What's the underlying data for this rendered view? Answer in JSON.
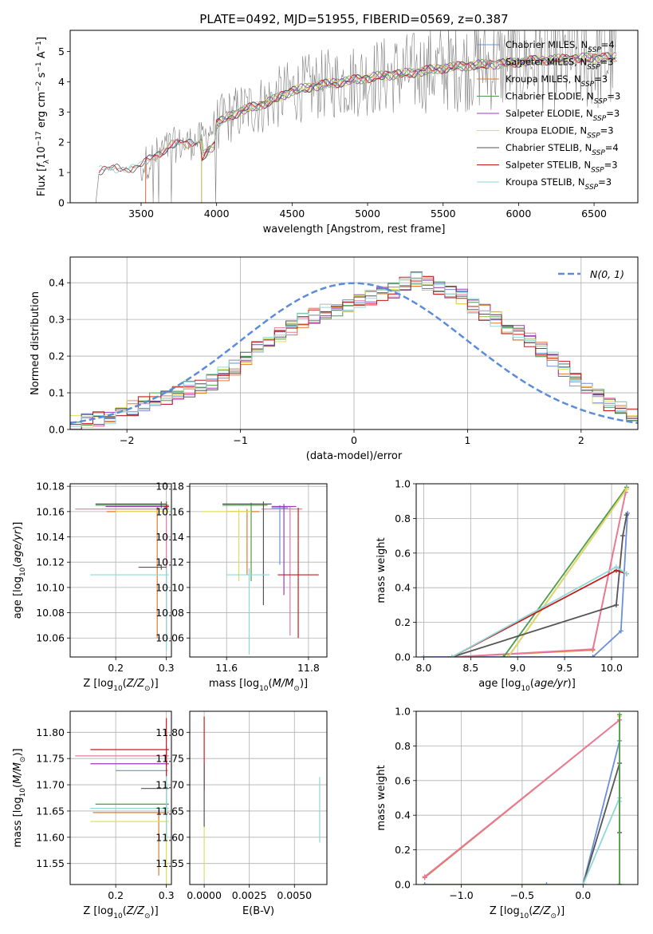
{
  "figure_title": "PLATE=0492, MJD=51955, FIBERID=0569, z=0.387",
  "colors": {
    "Chabrier MILES": "#6a8fd8",
    "Salpeter MILES": "#e8789e",
    "Kroupa MILES": "#e07b2e",
    "Chabrier ELODIE": "#4e9a4e",
    "Salpeter ELODIE": "#9a3ab8",
    "Kroupa ELODIE": "#dfe05a",
    "Chabrier STELIB": "#555555",
    "Salpeter STELIB": "#c41c1c",
    "Kroupa STELIB": "#8fd7d7",
    "data": "#808080",
    "gaussian": "#5b8bdc"
  },
  "chart_data": [
    {
      "id": "spectrum",
      "type": "line",
      "title": "PLATE=0492, MJD=51955, FIBERID=0569, z=0.387",
      "xlabel": "wavelength [Angstrom, rest frame]",
      "ylabel": "Flux [f_λ 10^-17 erg cm^-2 s^-1 A^-1]",
      "xlim": [
        3030,
        6790
      ],
      "ylim": [
        0,
        5.7
      ],
      "xticks": [
        3500,
        4000,
        4500,
        5000,
        5500,
        6000,
        6500
      ],
      "yticks": [
        0,
        1,
        2,
        3,
        4,
        5
      ],
      "legend_position": "top-right",
      "data_series": {
        "name": "data",
        "color": "#808080"
      },
      "continuum": {
        "x": [
          3200,
          3300,
          3400,
          3500,
          3600,
          3700,
          3800,
          3900,
          4000,
          4100,
          4200,
          4300,
          4400,
          4500,
          4700,
          4900,
          5100,
          5300,
          5500,
          5700,
          5900,
          6100,
          6300,
          6500,
          6650
        ],
        "y": [
          1.05,
          1.1,
          1.15,
          1.2,
          1.6,
          1.9,
          1.95,
          2.1,
          2.6,
          2.9,
          3.1,
          3.25,
          3.45,
          3.7,
          3.9,
          4.05,
          4.2,
          4.3,
          4.45,
          4.55,
          4.6,
          4.7,
          4.75,
          4.8,
          4.8
        ]
      },
      "series": [
        {
          "name": "Chabrier MILES",
          "label": "Chabrier MILES, N",
          "sub": "SSP",
          "nssp": "=4",
          "color": "#6a8fd8",
          "x": [
            3530,
            4000,
            6650
          ]
        },
        {
          "name": "Salpeter MILES",
          "label": "Salpeter MILES, N",
          "sub": "SSP",
          "nssp": "=3",
          "color": "#e8789e",
          "x": [
            3530,
            4000,
            6650
          ]
        },
        {
          "name": "Kroupa MILES",
          "label": "Kroupa MILES, N",
          "sub": "SSP",
          "nssp": "=3",
          "color": "#e07b2e",
          "x": [
            3530,
            4000,
            6650
          ]
        },
        {
          "name": "Chabrier ELODIE",
          "label": "Chabrier ELODIE, N",
          "sub": "SSP",
          "nssp": "=3",
          "color": "#4e9a4e",
          "x": [
            3900,
            4000,
            6650
          ]
        },
        {
          "name": "Salpeter ELODIE",
          "label": "Salpeter ELODIE, N",
          "sub": "SSP",
          "nssp": "=3",
          "color": "#9a3ab8",
          "x": [
            3900,
            4000,
            6650
          ]
        },
        {
          "name": "Kroupa ELODIE",
          "label": "Kroupa ELODIE, N",
          "sub": "SSP",
          "nssp": "=3",
          "color": "#dfe05a",
          "x": [
            3900,
            4000,
            6650
          ]
        },
        {
          "name": "Chabrier STELIB",
          "label": "Chabrier STELIB, N",
          "sub": "SSP",
          "nssp": "=4",
          "color": "#555555",
          "x": [
            3220,
            4000,
            6650
          ]
        },
        {
          "name": "Salpeter STELIB",
          "label": "Salpeter STELIB, N",
          "sub": "SSP",
          "nssp": "=3",
          "color": "#c41c1c",
          "x": [
            3220,
            4000,
            6650
          ]
        },
        {
          "name": "Kroupa STELIB",
          "label": "Kroupa STELIB, N",
          "sub": "SSP",
          "nssp": "=3",
          "color": "#8fd7d7",
          "x": [
            3220,
            4000,
            6650
          ]
        }
      ]
    },
    {
      "id": "residuals",
      "type": "histogram",
      "xlabel": "(data-model)/error",
      "ylabel": "Normed distribution",
      "xlim": [
        -2.5,
        2.5
      ],
      "ylim": [
        0,
        0.47
      ],
      "xticks": [
        -2,
        -1,
        0,
        1,
        2
      ],
      "yticks": [
        0.0,
        0.1,
        0.2,
        0.3,
        0.4
      ],
      "grid": true,
      "legend": {
        "label": "N(0, 1)",
        "position": "top-right"
      },
      "bin_width": 0.1,
      "bin_start": -2.5,
      "bins": 50,
      "profile": [
        0.018,
        0.022,
        0.03,
        0.035,
        0.05,
        0.06,
        0.07,
        0.082,
        0.09,
        0.1,
        0.11,
        0.12,
        0.13,
        0.15,
        0.17,
        0.195,
        0.22,
        0.24,
        0.26,
        0.28,
        0.3,
        0.31,
        0.32,
        0.33,
        0.34,
        0.35,
        0.36,
        0.37,
        0.38,
        0.4,
        0.41,
        0.4,
        0.39,
        0.37,
        0.36,
        0.34,
        0.32,
        0.3,
        0.28,
        0.265,
        0.245,
        0.22,
        0.19,
        0.165,
        0.14,
        0.11,
        0.09,
        0.07,
        0.055,
        0.04
      ]
    },
    {
      "id": "z-age",
      "type": "errorbar",
      "xlabel": "Z [log10(Z/Z⊙)]",
      "ylabel": "age [log10(age/yr)]",
      "xlim": [
        0.11,
        0.31
      ],
      "ylim": [
        10.045,
        10.182
      ],
      "xticks": [
        0.2,
        0.3
      ],
      "yticks": [
        10.06,
        10.08,
        10.1,
        10.12,
        10.14,
        10.16,
        10.18
      ],
      "grid": true,
      "points": [
        {
          "name": "Chabrier MILES",
          "x": 0.3,
          "xerr": [
            0.005,
            0.003
          ],
          "y": 10.163,
          "yerr": [
            0.003,
            0.005
          ]
        },
        {
          "name": "Salpeter MILES",
          "x": 0.3,
          "xerr": [
            0.18,
            0.005
          ],
          "y": 10.162,
          "yerr": [
            0.105,
            0.002
          ]
        },
        {
          "name": "Kroupa MILES",
          "x": 0.282,
          "xerr": [
            0.1,
            0.02
          ],
          "y": 10.16,
          "yerr": [
            0.1,
            0.004
          ]
        },
        {
          "name": "Chabrier ELODIE",
          "x": 0.3,
          "xerr": [
            0.14,
            0.005
          ],
          "y": 10.165,
          "yerr": [
            0.003,
            0.003
          ]
        },
        {
          "name": "Salpeter ELODIE",
          "x": 0.3,
          "xerr": [
            0.12,
            0.005
          ],
          "y": 10.164,
          "yerr": [
            0.002,
            0.002
          ]
        },
        {
          "name": "Kroupa ELODIE",
          "x": 0.3,
          "xerr": [
            0.1,
            0.005
          ],
          "y": 10.16,
          "yerr": [
            0.002,
            0.002
          ]
        },
        {
          "name": "Chabrier STELIB",
          "x": 0.29,
          "xerr": [
            0.13,
            0.01
          ],
          "y": 10.166,
          "yerr": [
            0.003,
            0.002
          ]
        },
        {
          "name": "Salpeter STELIB",
          "x": 0.3,
          "xerr": [
            0.005,
            0.005
          ],
          "y": 10.164,
          "yerr": [
            0.002,
            0.002
          ]
        },
        {
          "name": "Kroupa STELIB",
          "x": 0.3,
          "xerr": [
            0.15,
            0.005
          ],
          "y": 10.11,
          "yerr": [
            0.06,
            0.005
          ]
        },
        {
          "name": "Chabrier STELIB",
          "x": 0.29,
          "xerr": [
            0.045,
            0.01
          ],
          "y": 10.116,
          "yerr": [
            0.002,
            0.002
          ]
        }
      ]
    },
    {
      "id": "mass-age",
      "type": "errorbar",
      "xlabel": "mass [log10(M/M⊙)]",
      "xlim": [
        11.51,
        11.845
      ],
      "ylim": [
        10.045,
        10.182
      ],
      "xticks": [
        11.6,
        11.8
      ],
      "yticks": [
        10.06,
        10.08,
        10.1,
        10.12,
        10.14,
        10.16,
        10.18
      ],
      "grid": true,
      "points": [
        {
          "name": "Chabrier MILES",
          "x": 11.73,
          "xerr": [
            0.02,
            0.02
          ],
          "y": 10.163,
          "yerr": [
            0.045,
            0.002
          ]
        },
        {
          "name": "Salpeter MILES",
          "x": 11.755,
          "xerr": [
            0.07,
            0.03
          ],
          "y": 10.162,
          "yerr": [
            0.1,
            0.002
          ]
        },
        {
          "name": "Kroupa MILES",
          "x": 11.65,
          "xerr": [
            0.05,
            0.03
          ],
          "y": 10.16,
          "yerr": [
            0.05,
            0.002
          ]
        },
        {
          "name": "Chabrier ELODIE",
          "x": 11.66,
          "xerr": [
            0.07,
            0.04
          ],
          "y": 10.165,
          "yerr": [
            0.06,
            0.002
          ]
        },
        {
          "name": "Salpeter ELODIE",
          "x": 11.74,
          "xerr": [
            0.03,
            0.03
          ],
          "y": 10.164,
          "yerr": [
            0.07,
            0.002
          ]
        },
        {
          "name": "Kroupa ELODIE",
          "x": 11.63,
          "xerr": [
            0.09,
            0.03
          ],
          "y": 10.16,
          "yerr": [
            0.055,
            0.002
          ]
        },
        {
          "name": "Chabrier STELIB",
          "x": 11.69,
          "xerr": [
            0.1,
            0.02
          ],
          "y": 10.166,
          "yerr": [
            0.08,
            0.002
          ]
        },
        {
          "name": "Salpeter STELIB",
          "x": 11.775,
          "xerr": [
            0.05,
            0.05
          ],
          "y": 10.11,
          "yerr": [
            0.05,
            0.053
          ]
        },
        {
          "name": "Kroupa STELIB",
          "x": 11.655,
          "xerr": [
            0.055,
            0.05
          ],
          "y": 10.11,
          "yerr": [
            0.063,
            0.005
          ]
        }
      ]
    },
    {
      "id": "age-weight",
      "type": "line",
      "xlabel": "age [log10(age/yr)]",
      "ylabel": "mass weight",
      "xlim": [
        7.92,
        10.28
      ],
      "ylim": [
        0,
        1
      ],
      "xticks": [
        8.0,
        8.5,
        9.0,
        9.5,
        10.0
      ],
      "yticks": [
        0.0,
        0.2,
        0.4,
        0.6,
        0.8,
        1.0
      ],
      "grid": true,
      "series": [
        {
          "name": "Chabrier MILES",
          "x": [
            8.0,
            8.3,
            9.8,
            10.1,
            10.17
          ],
          "y": [
            0.0,
            0.0,
            0.0,
            0.15,
            0.83
          ]
        },
        {
          "name": "Kroupa MILES",
          "x": [
            8.3,
            9.8,
            10.15
          ],
          "y": [
            0.0,
            0.04,
            0.95
          ]
        },
        {
          "name": "Salpeter MILES",
          "x": [
            8.3,
            9.8,
            10.15
          ],
          "y": [
            0.0,
            0.045,
            0.95
          ]
        },
        {
          "name": "Chabrier ELODIE",
          "x": [
            8.85,
            10.16
          ],
          "y": [
            0.0,
            0.98
          ]
        },
        {
          "name": "Salpeter ELODIE",
          "x": [
            8.9,
            10.16
          ],
          "y": [
            0.0,
            0.97
          ]
        },
        {
          "name": "Kroupa ELODIE",
          "x": [
            8.9,
            10.16
          ],
          "y": [
            0.0,
            0.97
          ]
        },
        {
          "name": "Chabrier STELIB",
          "x": [
            8.3,
            10.05,
            10.12,
            10.16
          ],
          "y": [
            0.0,
            0.3,
            0.7,
            0.82
          ]
        },
        {
          "name": "Salpeter STELIB",
          "x": [
            8.3,
            10.05,
            10.16
          ],
          "y": [
            0.0,
            0.5,
            0.48
          ]
        },
        {
          "name": "Kroupa STELIB",
          "x": [
            8.3,
            10.05,
            10.16
          ],
          "y": [
            0.0,
            0.52,
            0.48
          ]
        }
      ]
    },
    {
      "id": "z-mass",
      "type": "errorbar",
      "xlabel": "Z [log10(Z/Z⊙)]",
      "ylabel": "mass [log10(M/M⊙)]",
      "xlim": [
        0.11,
        0.31
      ],
      "ylim": [
        11.51,
        11.84
      ],
      "xticks": [
        0.2,
        0.3
      ],
      "yticks": [
        11.55,
        11.6,
        11.65,
        11.7,
        11.75,
        11.8
      ],
      "grid": true,
      "points": [
        {
          "name": "Chabrier MILES",
          "x": 0.3,
          "xerr": [
            0.1,
            0.003
          ],
          "y": 11.727,
          "yerr": [
            0.13,
            0.005
          ]
        },
        {
          "name": "Salpeter MILES",
          "x": 0.3,
          "xerr": [
            0.18,
            0.005
          ],
          "y": 11.755,
          "yerr": [
            0.02,
            0.02
          ]
        },
        {
          "name": "Kroupa MILES",
          "x": 0.285,
          "xerr": [
            0.13,
            0.02
          ],
          "y": 11.647,
          "yerr": [
            0.12,
            0.005
          ]
        },
        {
          "name": "Chabrier ELODIE",
          "x": 0.3,
          "xerr": [
            0.14,
            0.005
          ],
          "y": 11.663,
          "yerr": [
            0.005,
            0.005
          ]
        },
        {
          "name": "Salpeter ELODIE",
          "x": 0.3,
          "xerr": [
            0.15,
            0.005
          ],
          "y": 11.74,
          "yerr": [
            0.005,
            0.005
          ]
        },
        {
          "name": "Kroupa ELODIE",
          "x": 0.3,
          "xerr": [
            0.15,
            0.005
          ],
          "y": 11.63,
          "yerr": [
            0.12,
            0.005
          ]
        },
        {
          "name": "Chabrier STELIB",
          "x": 0.3,
          "xerr": [
            0.05,
            0.005
          ],
          "y": 11.693,
          "yerr": [
            0.005,
            0.005
          ]
        },
        {
          "name": "Salpeter STELIB",
          "x": 0.3,
          "xerr": [
            0.15,
            0.005
          ],
          "y": 11.767,
          "yerr": [
            0.05,
            0.06
          ]
        },
        {
          "name": "Kroupa STELIB",
          "x": 0.3,
          "xerr": [
            0.15,
            0.005
          ],
          "y": 11.655,
          "yerr": [
            0.06,
            0.06
          ]
        }
      ]
    },
    {
      "id": "ebv-mass",
      "type": "errorbar",
      "xlabel": "E(B-V)",
      "xlim": [
        -0.0008,
        0.0068
      ],
      "ylim": [
        11.51,
        11.84
      ],
      "xticks": [
        0.0,
        0.0025,
        0.005
      ],
      "xticklabels": [
        "0.0000",
        "0.0025",
        "0.0050"
      ],
      "yticks": [
        11.55,
        11.6,
        11.65,
        11.7,
        11.75,
        11.8
      ],
      "grid": true,
      "points": [
        {
          "name": "Salpeter STELIB",
          "x": 0.0,
          "y": 11.76,
          "yerr": [
            0.07,
            0.07
          ]
        },
        {
          "name": "Chabrier STELIB",
          "x": 0.0,
          "y": 11.69,
          "yerr": [
            0.07,
            0.05
          ]
        },
        {
          "name": "Kroupa ELODIE",
          "x": 0.0,
          "y": 11.57,
          "yerr": [
            0.05,
            0.05
          ]
        },
        {
          "name": "Kroupa STELIB",
          "x": 0.0064,
          "y": 11.655,
          "yerr": [
            0.065,
            0.06
          ]
        }
      ]
    },
    {
      "id": "z-weight",
      "type": "line",
      "xlabel": "Z [log10(Z/Z⊙)]",
      "ylabel": "mass weight",
      "xlim": [
        -1.37,
        0.45
      ],
      "ylim": [
        0,
        1
      ],
      "xticks": [
        -1.0,
        -0.5,
        0.0
      ],
      "yticks": [
        0.0,
        0.2,
        0.4,
        0.6,
        0.8,
        1.0
      ],
      "grid": true,
      "series": [
        {
          "name": "Chabrier MILES",
          "x": [
            -1.3,
            -0.3,
            0.0,
            0.3
          ],
          "y": [
            0.0,
            0.0,
            0.0,
            0.83
          ]
        },
        {
          "name": "Kroupa MILES",
          "x": [
            -1.3,
            0.3
          ],
          "y": [
            0.04,
            0.95
          ]
        },
        {
          "name": "Salpeter MILES",
          "x": [
            -1.3,
            0.3
          ],
          "y": [
            0.045,
            0.95
          ]
        },
        {
          "name": "Chabrier STELIB",
          "x": [
            0.0,
            0.3,
            0.3
          ],
          "y": [
            0.0,
            0.7,
            0.3
          ]
        },
        {
          "name": "Kroupa STELIB",
          "x": [
            0.0,
            0.3,
            0.3
          ],
          "y": [
            0.0,
            0.5,
            0.48
          ]
        },
        {
          "name": "Kroupa ELODIE",
          "x": [
            0.3,
            0.3
          ],
          "y": [
            0.0,
            0.97
          ]
        },
        {
          "name": "Chabrier ELODIE",
          "x": [
            0.3,
            0.3
          ],
          "y": [
            0.0,
            0.98
          ]
        }
      ]
    }
  ]
}
